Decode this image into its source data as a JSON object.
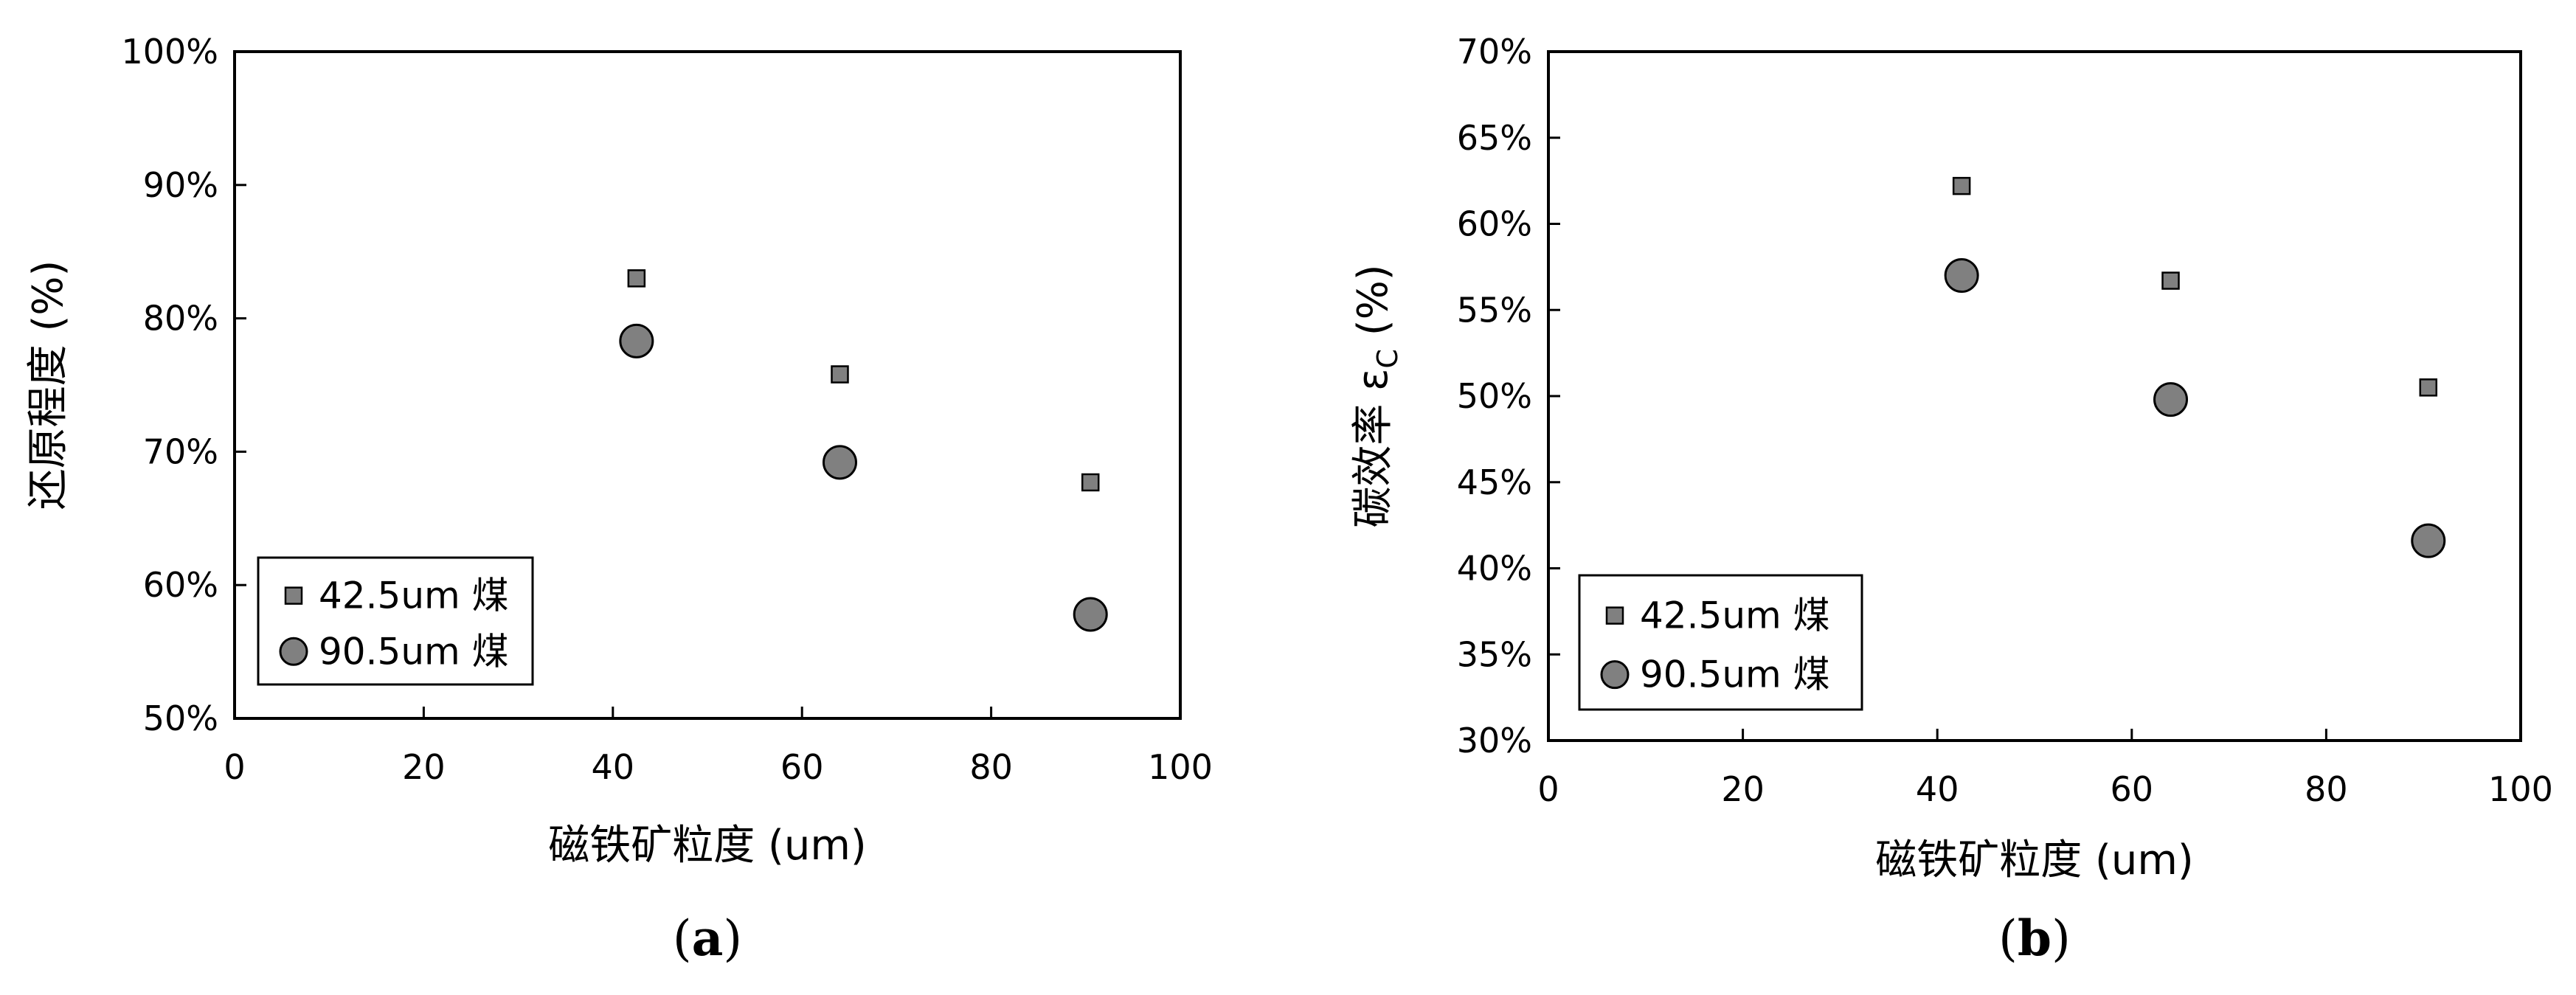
{
  "chart_data": [
    {
      "type": "scatter",
      "caption": {
        "open": "(",
        "letter": "a",
        "close": ")"
      },
      "xlabel": "磁铁矿粒度 (um)",
      "ylabel": "还原程度 (%)",
      "xlim": [
        0,
        100
      ],
      "ylim": [
        0.5,
        1.0
      ],
      "xticks": [
        0,
        20,
        40,
        60,
        80,
        100
      ],
      "xtick_labels": [
        "0",
        "20",
        "40",
        "60",
        "80",
        "100"
      ],
      "yticks": [
        0.5,
        0.6,
        0.7,
        0.8,
        0.9,
        1.0
      ],
      "ytick_labels": [
        "50%",
        "60%",
        "70%",
        "80%",
        "90%",
        "100%"
      ],
      "grid": false,
      "legend_position": "bottom-left",
      "series": [
        {
          "name": "42.5um 煤",
          "marker": "square",
          "color": "#808080",
          "x": [
            42.5,
            64,
            90.5
          ],
          "y": [
            0.83,
            0.758,
            0.677
          ]
        },
        {
          "name": "90.5um 煤",
          "marker": "circle",
          "color": "#808080",
          "x": [
            42.5,
            64,
            90.5
          ],
          "y": [
            0.783,
            0.692,
            0.578
          ]
        }
      ]
    },
    {
      "type": "scatter",
      "caption": {
        "open": "(",
        "letter": "b",
        "close": ")"
      },
      "xlabel": "磁铁矿粒度 (um)",
      "ylabel": "碳效率",
      "ylabel_symbol": "ε",
      "ylabel_subscript": "C",
      "ylabel_unit": "(%)",
      "xlim": [
        0,
        100
      ],
      "ylim": [
        0.3,
        0.7
      ],
      "xticks": [
        0,
        20,
        40,
        60,
        80,
        100
      ],
      "xtick_labels": [
        "0",
        "20",
        "40",
        "60",
        "80",
        "100"
      ],
      "yticks": [
        0.3,
        0.35,
        0.4,
        0.45,
        0.5,
        0.55,
        0.6,
        0.65,
        0.7
      ],
      "ytick_labels": [
        "30%",
        "35%",
        "40%",
        "45%",
        "50%",
        "55%",
        "60%",
        "65%",
        "70%"
      ],
      "grid": false,
      "legend_position": "bottom-left",
      "series": [
        {
          "name": "42.5um 煤",
          "marker": "square",
          "color": "#808080",
          "x": [
            42.5,
            64,
            90.5
          ],
          "y": [
            0.622,
            0.567,
            0.505
          ]
        },
        {
          "name": "90.5um 煤",
          "marker": "circle",
          "color": "#808080",
          "x": [
            42.5,
            64,
            90.5
          ],
          "y": [
            0.57,
            0.498,
            0.416
          ]
        }
      ]
    }
  ]
}
